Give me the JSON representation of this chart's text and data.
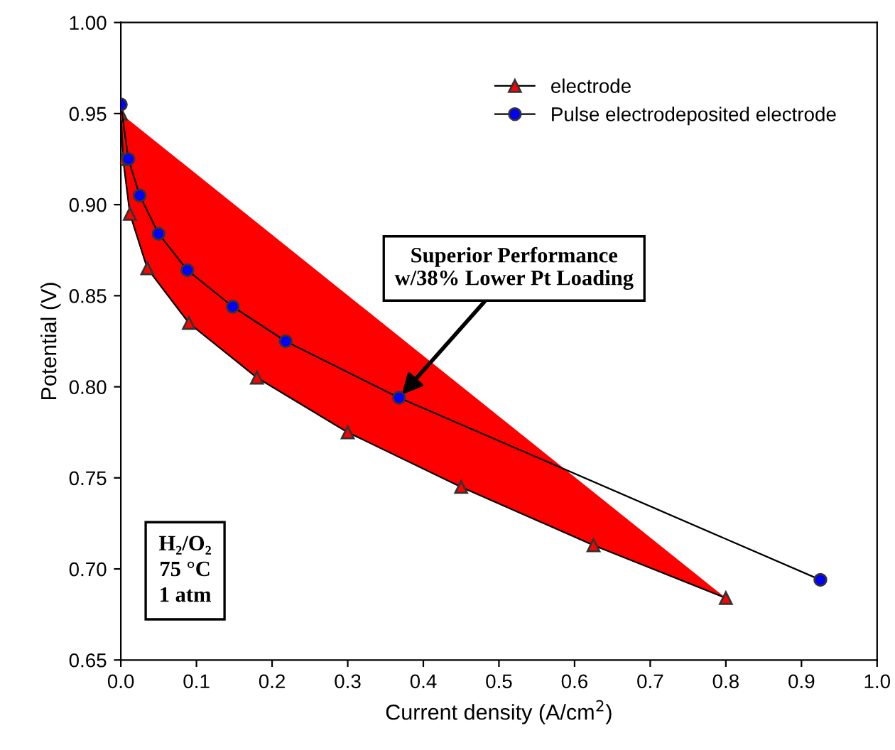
{
  "chart_data": {
    "type": "line",
    "xlabel": "Current density (A/cm$^{2}$)",
    "ylabel": "Potential (V)",
    "xlim": [
      0,
      1
    ],
    "xticks": [
      {
        "value": 0,
        "label": "0.0"
      },
      0.1,
      0.2,
      0.3,
      0.4,
      0.5,
      0.6,
      0.7,
      0.8,
      0.9,
      {
        "value": 1,
        "label": "1.0"
      }
    ],
    "ylim": [
      0.65,
      1
    ],
    "yticks": [
      {
        "value": 0.65,
        "label": "0.65"
      },
      {
        "value": 0.7,
        "label": "0.70"
      },
      0.75,
      {
        "value": 0.8,
        "label": "0.80"
      },
      0.85,
      {
        "value": 0.9,
        "label": "0.90"
      },
      0.95,
      {
        "value": 1,
        "label": "1.00"
      }
    ],
    "grid": false,
    "legend": "top right",
    "line_style": "solid",
    "series": [
      {
        "name": "electrode",
        "color": "#ff0000",
        "marker": "triangle",
        "x": [
          0,
          0.003,
          0.012,
          0.035,
          0.09,
          0.18,
          0.3,
          0.45,
          0.625,
          0.8
        ],
        "values": [
          0.95,
          0.925,
          0.895,
          0.865,
          0.835,
          0.805,
          0.775,
          0.745,
          0.713,
          0.684
        ]
      },
      {
        "name": "Pulse electrodeposited electrode",
        "color": "#0000ff",
        "marker": "circle",
        "x": [
          0,
          0.01,
          0.025,
          0.05,
          0.088,
          0.148,
          0.218,
          0.368,
          0.925
        ],
        "values": [
          0.955,
          0.925,
          0.905,
          0.884,
          0.864,
          0.844,
          0.825,
          0.794,
          0.694
        ]
      }
    ],
    "annotations": [
      {
        "text": "Superior Performance\nw/38% Lower Pt Loading",
        "x": 0.368,
        "y": 0.794
      },
      "H₂/O₂\n75 °C\n1 atm"
    ]
  }
}
